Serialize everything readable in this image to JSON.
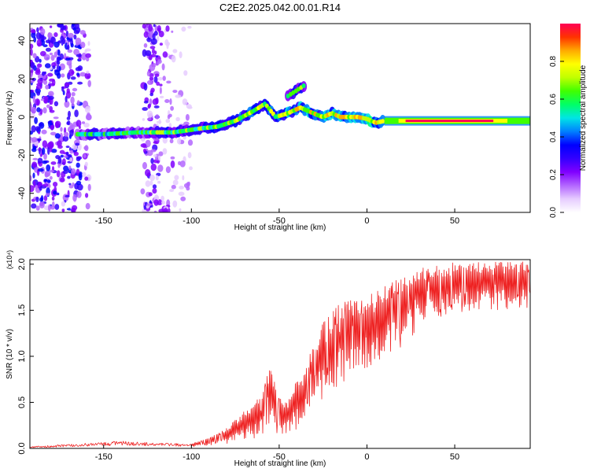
{
  "title": "C2E2.2025.042.00.01.R14",
  "colors": {
    "snr_line": "#ee2222",
    "frame": "#000000",
    "colormap_stops": [
      "#ffffff",
      "#e6ccff",
      "#b366ff",
      "#8000ff",
      "#3300ff",
      "#0000ff",
      "#0080ff",
      "#00e5e5",
      "#00ff66",
      "#40ff00",
      "#c0ff00",
      "#ffff00",
      "#ffaa00",
      "#ff3300",
      "#ff0055"
    ]
  },
  "chart_data": [
    {
      "type": "heatmap",
      "name": "spectrogram",
      "xlabel": "Height of straight line (km)",
      "ylabel": "Frequency (Hz)",
      "xlim": [
        -192,
        93
      ],
      "ylim": [
        -50,
        49
      ],
      "xticks": [
        -150,
        -100,
        -50,
        0,
        50
      ],
      "yticks": [
        -40,
        -20,
        0,
        20,
        40
      ],
      "colorbar": {
        "label": "Normalized spectral amplitude",
        "range": [
          0,
          1
        ],
        "ticks": [
          "0.0",
          "0.2",
          "0.4",
          "0.6",
          "0.8"
        ]
      },
      "ridge": {
        "x": [
          -165,
          -150,
          -130,
          -110,
          -95,
          -85,
          -75,
          -65,
          -58,
          -52,
          -45,
          -38,
          -33,
          -28,
          -25,
          -20,
          -15,
          -10,
          -5,
          0,
          5,
          10,
          30,
          60,
          93
        ],
        "y": [
          -9,
          -9,
          -8,
          -8,
          -6,
          -5,
          -2,
          3,
          7,
          0,
          2,
          5,
          3,
          1,
          0,
          2,
          0,
          0,
          0,
          -1,
          -3,
          -2,
          -2,
          -2,
          -2
        ]
      },
      "ridge_branch": {
        "x": [
          -45,
          -40,
          -35
        ],
        "y": [
          11,
          14,
          17
        ]
      }
    },
    {
      "type": "line",
      "name": "snr",
      "xlabel": "Height of straight line (km)",
      "ylabel": "SNR (10 * v/v)",
      "yscale_label": "(x10⁴)",
      "xlim": [
        -192,
        93
      ],
      "ylim": [
        0,
        2.05
      ],
      "xticks": [
        -150,
        -100,
        -50,
        0,
        50
      ],
      "yticks": [
        "0.0",
        "0.5",
        "1.0",
        "1.5",
        "2.0"
      ],
      "envelope": {
        "x": [
          -192,
          -140,
          -120,
          -100,
          -90,
          -80,
          -70,
          -60,
          -55,
          -50,
          -45,
          -40,
          -35,
          -30,
          -25,
          -20,
          -15,
          -10,
          -5,
          0,
          5,
          10,
          15,
          20,
          25,
          30,
          40,
          50,
          60,
          70,
          80,
          93
        ],
        "upper": [
          0.02,
          0.08,
          0.06,
          0.05,
          0.12,
          0.22,
          0.4,
          0.6,
          0.9,
          0.55,
          0.5,
          0.75,
          0.95,
          1.15,
          1.38,
          1.5,
          1.58,
          1.62,
          1.65,
          1.68,
          1.72,
          1.78,
          1.85,
          1.9,
          1.95,
          1.98,
          2.0,
          2.02,
          2.03,
          2.03,
          2.03,
          2.03
        ],
        "lower": [
          0.0,
          0.01,
          0.01,
          0.01,
          0.03,
          0.05,
          0.1,
          0.12,
          0.15,
          0.12,
          0.15,
          0.2,
          0.35,
          0.45,
          0.55,
          0.6,
          0.7,
          0.75,
          0.8,
          0.85,
          0.9,
          0.95,
          1.05,
          1.1,
          1.2,
          1.3,
          1.4,
          1.45,
          1.5,
          1.5,
          1.5,
          1.5
        ]
      }
    }
  ]
}
